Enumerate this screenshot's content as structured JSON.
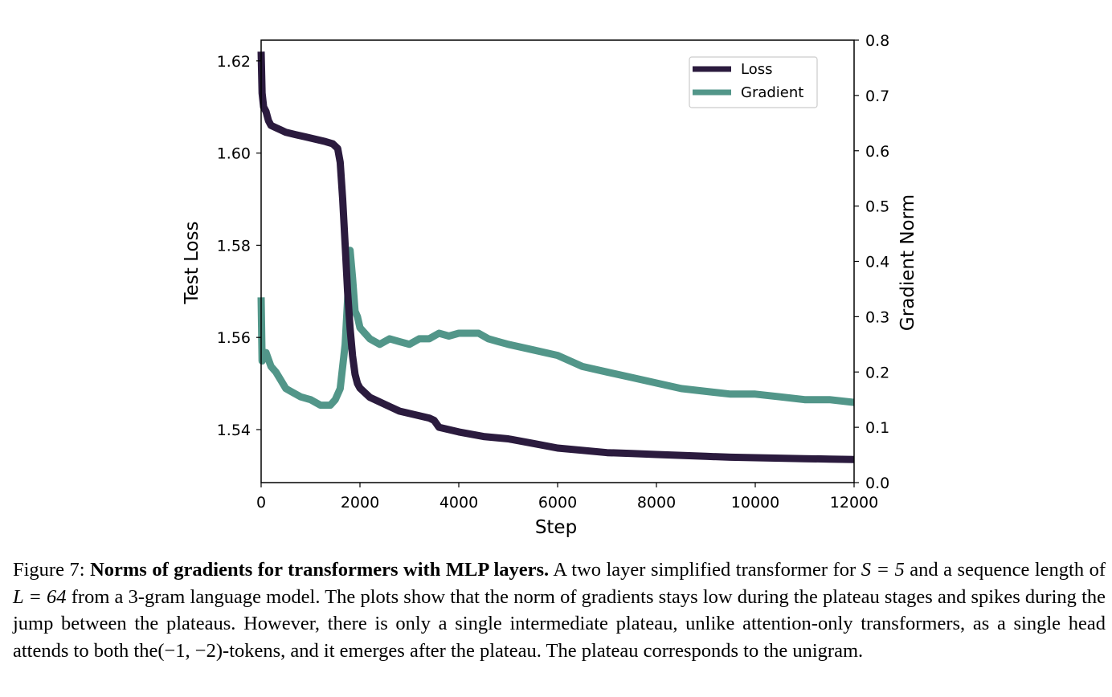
{
  "chart_data": {
    "type": "line",
    "xlabel": "Step",
    "ylabel": "Test Loss",
    "y2label": "Gradient Norm",
    "xlim": [
      0,
      12000
    ],
    "ylim": [
      1.5285,
      1.6245
    ],
    "y2lim": [
      0.0,
      0.8
    ],
    "xticks": [
      "0",
      "2000",
      "4000",
      "6000",
      "8000",
      "10000",
      "12000"
    ],
    "xtick_values": [
      0,
      2000,
      4000,
      6000,
      8000,
      10000,
      12000
    ],
    "yticks": [
      "1.54",
      "1.56",
      "1.58",
      "1.60",
      "1.62"
    ],
    "ytick_values": [
      1.54,
      1.56,
      1.58,
      1.6,
      1.62
    ],
    "y2ticks": [
      "0.0",
      "0.1",
      "0.2",
      "0.3",
      "0.4",
      "0.5",
      "0.6",
      "0.7",
      "0.8"
    ],
    "y2tick_values": [
      0.0,
      0.1,
      0.2,
      0.3,
      0.4,
      0.5,
      0.6,
      0.7,
      0.8
    ],
    "legend_position": "top-right",
    "series": [
      {
        "name": "Loss",
        "axis": "left",
        "color": "#2b1b3e",
        "x": [
          0,
          20,
          50,
          100,
          150,
          200,
          300,
          400,
          500,
          700,
          900,
          1100,
          1300,
          1450,
          1550,
          1600,
          1650,
          1700,
          1750,
          1800,
          1850,
          1900,
          1950,
          2000,
          2200,
          2400,
          2600,
          2800,
          3000,
          3200,
          3400,
          3500,
          3600,
          3800,
          4000,
          4500,
          5000,
          5500,
          6000,
          6500,
          7000,
          7500,
          8000,
          8500,
          9000,
          9500,
          10000,
          10500,
          11000,
          11500,
          12000
        ],
        "y": [
          1.622,
          1.613,
          1.61,
          1.609,
          1.607,
          1.606,
          1.6055,
          1.605,
          1.6045,
          1.604,
          1.6035,
          1.603,
          1.6025,
          1.602,
          1.601,
          1.598,
          1.59,
          1.58,
          1.57,
          1.562,
          1.556,
          1.552,
          1.55,
          1.549,
          1.547,
          1.546,
          1.545,
          1.544,
          1.5435,
          1.543,
          1.5425,
          1.542,
          1.5405,
          1.54,
          1.5395,
          1.5385,
          1.538,
          1.537,
          1.536,
          1.5355,
          1.535,
          1.5348,
          1.5346,
          1.5344,
          1.5342,
          1.534,
          1.5339,
          1.5338,
          1.5337,
          1.5336,
          1.5335
        ]
      },
      {
        "name": "Gradient",
        "axis": "right",
        "color": "#529689",
        "x": [
          0,
          20,
          50,
          100,
          200,
          300,
          400,
          500,
          600,
          800,
          1000,
          1200,
          1400,
          1500,
          1600,
          1700,
          1750,
          1800,
          1850,
          1900,
          1950,
          2000,
          2200,
          2400,
          2600,
          2800,
          3000,
          3200,
          3400,
          3600,
          3800,
          4000,
          4200,
          4400,
          4600,
          4800,
          5000,
          5500,
          6000,
          6500,
          7000,
          7500,
          8000,
          8500,
          9000,
          9500,
          10000,
          10500,
          11000,
          11500,
          12000
        ],
        "y": [
          0.335,
          0.22,
          0.23,
          0.235,
          0.21,
          0.2,
          0.185,
          0.17,
          0.165,
          0.155,
          0.15,
          0.14,
          0.14,
          0.15,
          0.17,
          0.25,
          0.33,
          0.42,
          0.37,
          0.31,
          0.3,
          0.28,
          0.26,
          0.25,
          0.26,
          0.255,
          0.25,
          0.26,
          0.26,
          0.27,
          0.265,
          0.27,
          0.27,
          0.27,
          0.26,
          0.255,
          0.25,
          0.24,
          0.23,
          0.21,
          0.2,
          0.19,
          0.18,
          0.17,
          0.165,
          0.16,
          0.16,
          0.155,
          0.15,
          0.15,
          0.145
        ]
      }
    ]
  },
  "caption": {
    "label": "Figure 7:",
    "bold": "Norms of gradients for transformers with MLP layers.",
    "text_1": "A two layer simplified transformer for",
    "math_S": "S = 5",
    "text_2": "and a sequence length of",
    "math_L": "L = 64",
    "text_3": "from a 3-gram language model. The plots show that the norm of gradients stays low during the plateau stages and spikes during the jump between the plateaus. However, there is only a single intermediate plateau, unlike attention-only transformers, as a single head attends to both the",
    "math_tokens": "(−1, −2)",
    "text_4": "-tokens, and it emerges after the plateau. The plateau corresponds to the unigram."
  }
}
